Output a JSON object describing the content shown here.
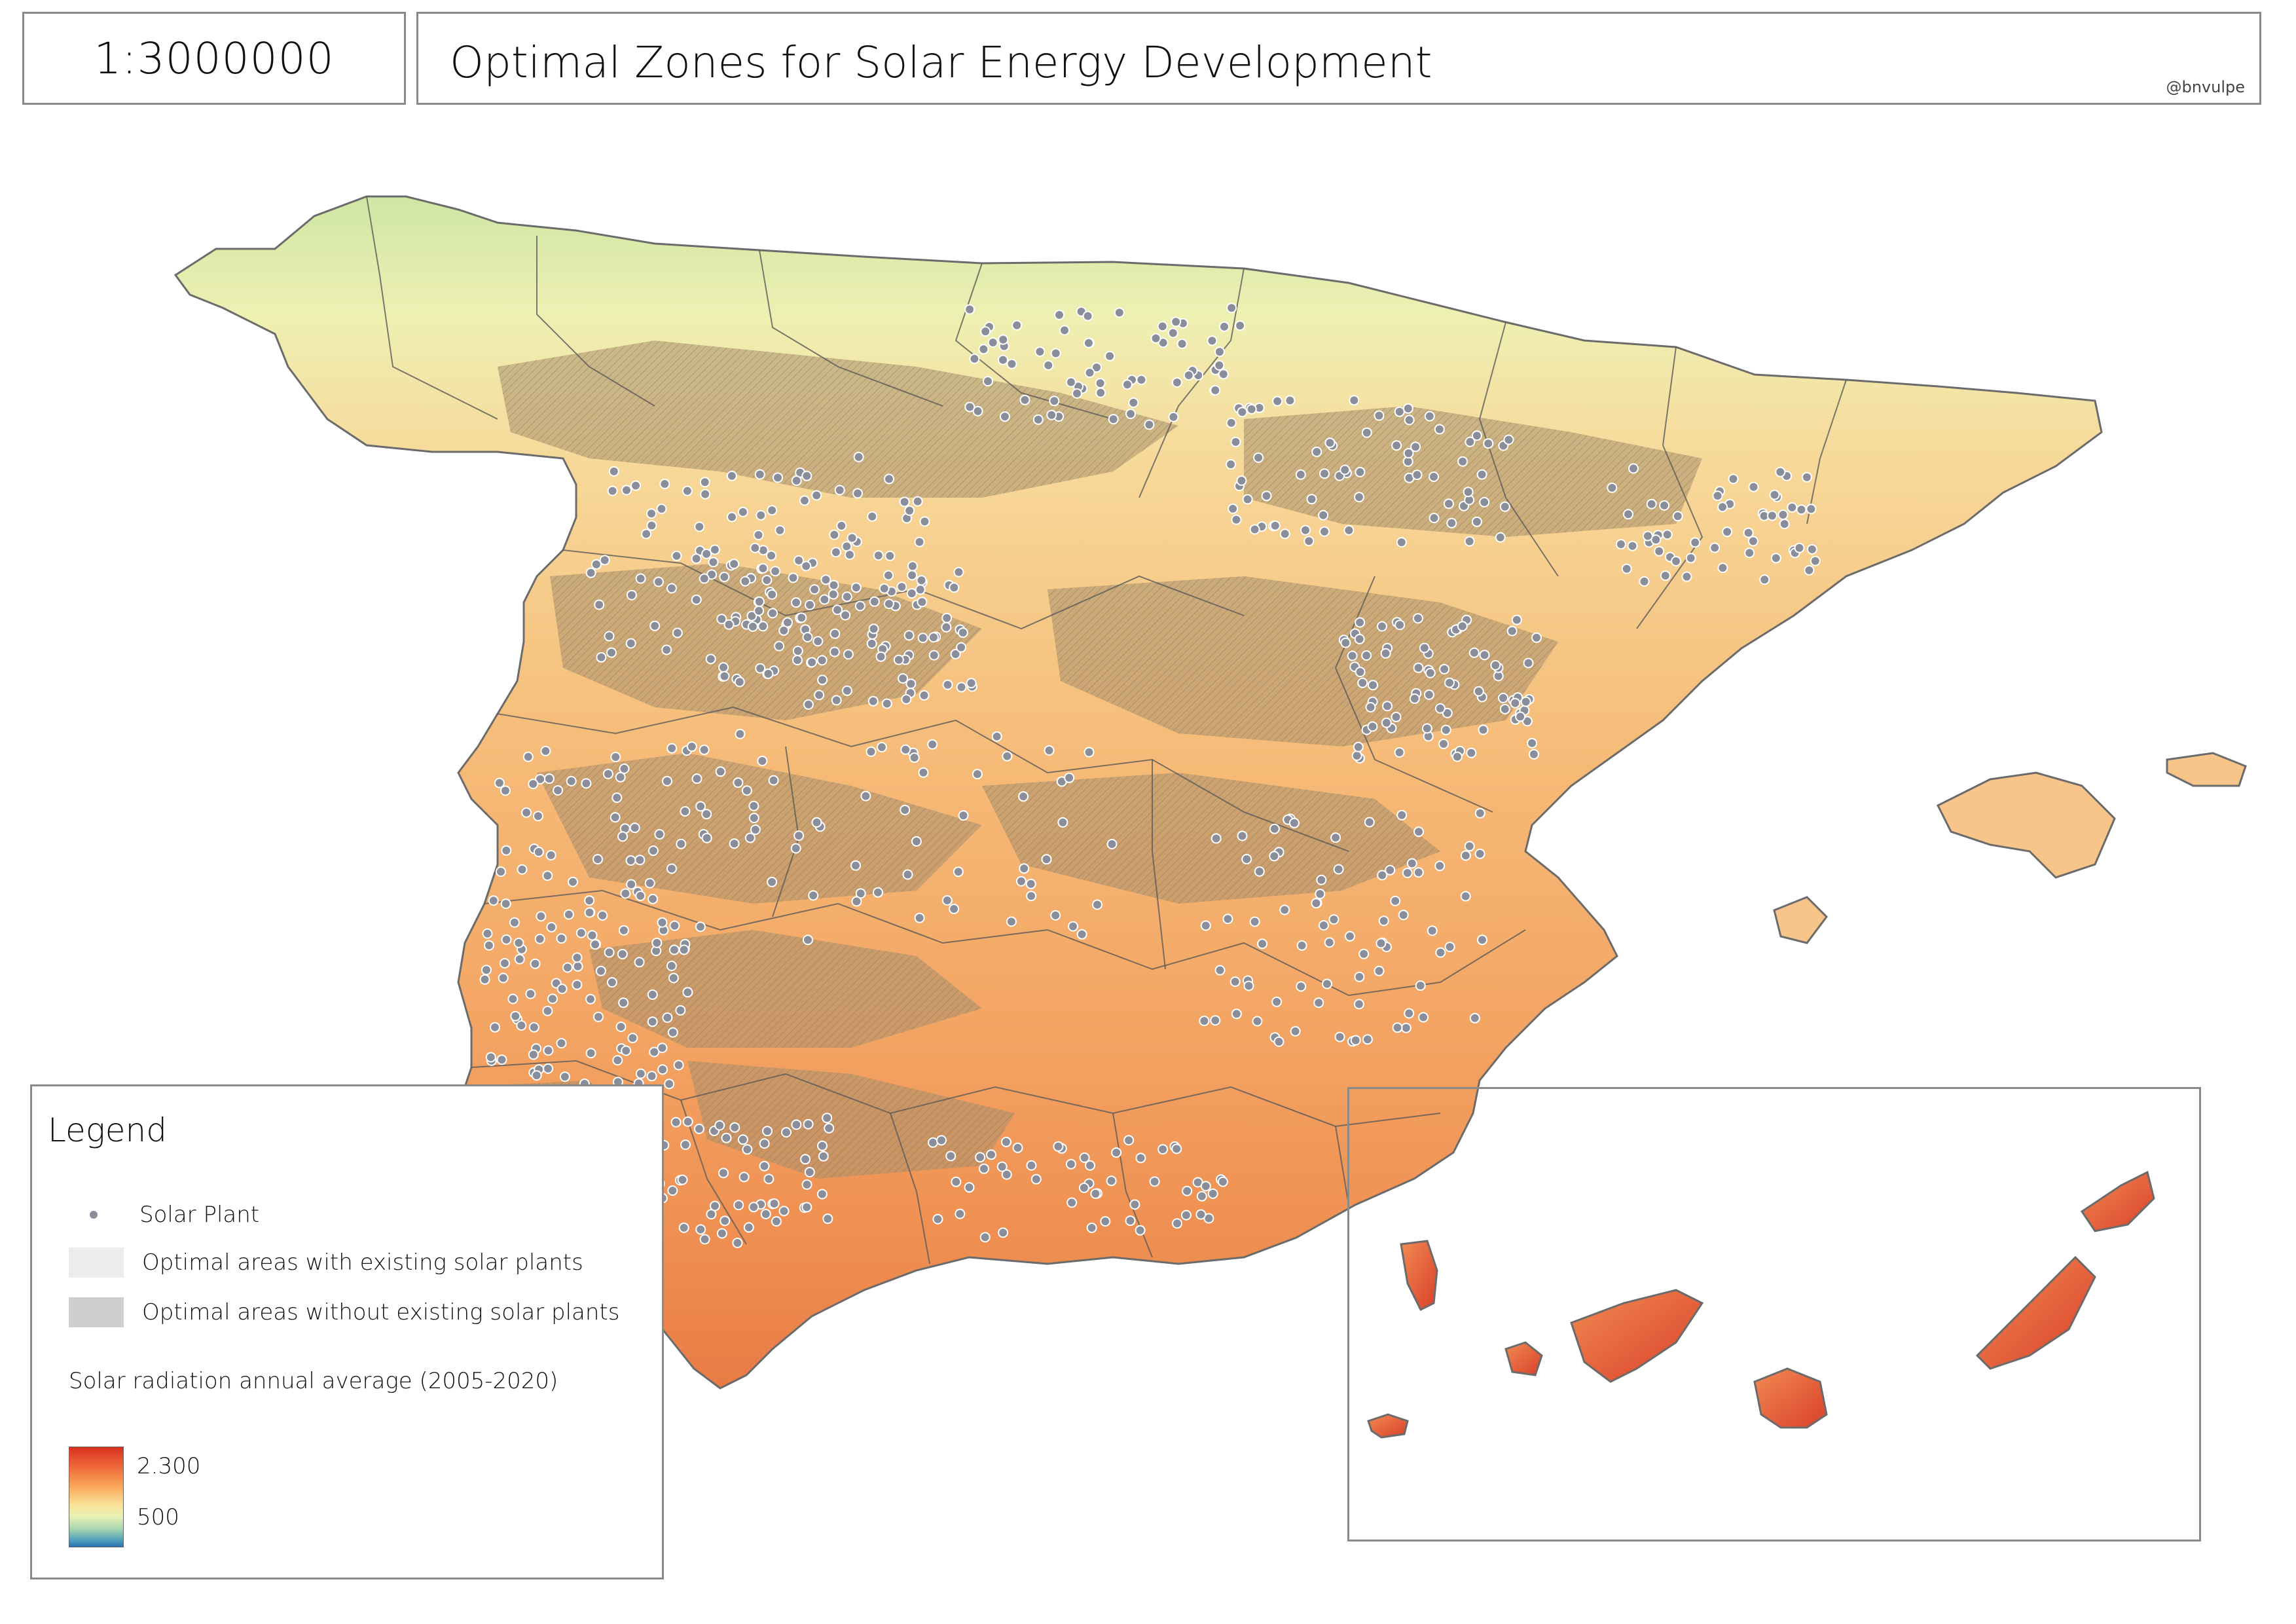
{
  "scale": "1:3000000",
  "title": "Optimal Zones for Solar Energy Development",
  "credit": "@bnvulpe",
  "legend": {
    "title": "Legend",
    "solar_plant": "Solar Plant",
    "optimal_with": "Optimal areas with existing solar plants",
    "optimal_without": "Optimal areas without existing solar plants",
    "radiation_title": "Solar radiation annual average (2005-2020)",
    "ramp_high": "2.300",
    "ramp_low": "500"
  },
  "colors": {
    "ramp_high": "#d7301f",
    "ramp_mid": "#fbe39a",
    "ramp_low": "#2c6fb0",
    "plant_dot": "#8a8e9a",
    "optimal_with": "#ececec",
    "optimal_without": "#cfcfcf",
    "frame": "#8a8a8a"
  }
}
